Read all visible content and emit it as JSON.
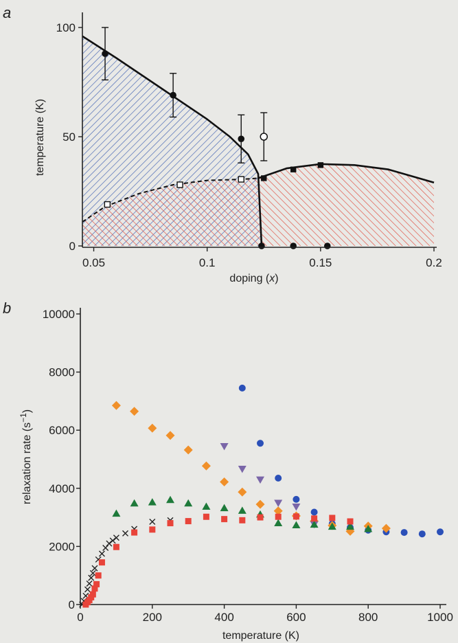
{
  "chart_data": [
    {
      "type": "scatter",
      "panel_label": "a",
      "xlabel_prefix": "doping (",
      "xlabel_var": "x",
      "xlabel_suffix": ")",
      "ylabel": "temperature (K)",
      "xlim": [
        0.045,
        0.2
      ],
      "ylim": [
        0,
        100
      ],
      "xticks": [
        0.05,
        0.1,
        0.15,
        0.2
      ],
      "xtick_labels": [
        "0.05",
        "0.1",
        "0.15",
        "0.2"
      ],
      "yticks": [
        0,
        50,
        100
      ],
      "ytick_labels": [
        "0",
        "50",
        "100"
      ],
      "grid": false,
      "regions": [
        {
          "name": "blue-hatched",
          "color": "#3b5fa8",
          "hatch": "diagonal-up"
        },
        {
          "name": "red-hatched",
          "color": "#d94030",
          "hatch": "diagonal-down"
        }
      ],
      "curves": [
        {
          "name": "upper-solid",
          "style": "solid",
          "x": [
            0.045,
            0.06,
            0.08,
            0.1,
            0.11,
            0.118,
            0.1225,
            0.124
          ],
          "y": [
            96,
            86,
            72,
            58,
            50,
            42,
            33,
            0
          ]
        },
        {
          "name": "dome-solid",
          "style": "solid",
          "x": [
            0.1225,
            0.135,
            0.15,
            0.165,
            0.18,
            0.2
          ],
          "y": [
            31,
            35.5,
            37.5,
            37,
            35,
            29
          ]
        },
        {
          "name": "lower-dashed",
          "style": "dashed",
          "x": [
            0.045,
            0.055,
            0.07,
            0.085,
            0.1,
            0.115,
            0.1225
          ],
          "y": [
            11,
            18,
            24,
            28,
            30,
            30.5,
            31
          ]
        }
      ],
      "series": [
        {
          "marker": "filled-circle",
          "color": "#111111",
          "x": [
            0.055,
            0.085,
            0.115
          ],
          "y": [
            88,
            69,
            49
          ],
          "yerr": [
            12,
            10,
            11
          ]
        },
        {
          "marker": "open-circle",
          "color": "#111111",
          "x": [
            0.125
          ],
          "y": [
            50
          ],
          "yerr": [
            11
          ]
        },
        {
          "marker": "open-square",
          "color": "#111111",
          "x": [
            0.056,
            0.088,
            0.115
          ],
          "y": [
            19,
            28,
            30.5
          ]
        },
        {
          "marker": "filled-square",
          "color": "#111111",
          "x": [
            0.125,
            0.138,
            0.15
          ],
          "y": [
            31,
            35,
            37
          ]
        },
        {
          "marker": "filled-circle",
          "color": "#111111",
          "x": [
            0.124,
            0.138,
            0.153
          ],
          "y": [
            0,
            0,
            0
          ]
        }
      ]
    },
    {
      "type": "scatter",
      "panel_label": "b",
      "xlabel": "temperature (K)",
      "ylabel_prefix": "relaxation rate (s",
      "ylabel_sup": "−1",
      "ylabel_suffix": ")",
      "xlim": [
        0,
        1000
      ],
      "ylim": [
        0,
        10000
      ],
      "xticks": [
        0,
        200,
        400,
        600,
        800,
        1000
      ],
      "xtick_labels": [
        "0",
        "200",
        "400",
        "600",
        "800",
        "1000"
      ],
      "yticks": [
        0,
        2000,
        4000,
        6000,
        8000,
        10000
      ],
      "ytick_labels": [
        "0",
        "2000",
        "4000",
        "6000",
        "8000",
        "10000"
      ],
      "grid": false,
      "series": [
        {
          "marker": "circle",
          "color": "#2b50b8",
          "x": [
            450,
            500,
            550,
            600,
            650,
            700,
            750,
            800,
            850,
            900,
            950,
            1000
          ],
          "y": [
            7450,
            5550,
            4350,
            3620,
            3180,
            2780,
            2650,
            2560,
            2500,
            2480,
            2430,
            2500
          ]
        },
        {
          "marker": "diamond",
          "color": "#f0902a",
          "x": [
            100,
            150,
            200,
            250,
            300,
            350,
            400,
            450,
            500,
            550,
            600,
            650,
            700,
            750,
            800,
            850
          ],
          "y": [
            6850,
            6650,
            6070,
            5820,
            5320,
            4770,
            4220,
            3870,
            3450,
            3220,
            3050,
            2870,
            2720,
            2520,
            2700,
            2620
          ]
        },
        {
          "marker": "triangle-down",
          "color": "#7a66a8",
          "x": [
            400,
            450,
            500,
            550,
            600,
            650
          ],
          "y": [
            5450,
            4670,
            4300,
            3500,
            3370,
            2760
          ]
        },
        {
          "marker": "triangle-up",
          "color": "#1e7a3a",
          "x": [
            100,
            150,
            200,
            250,
            300,
            350,
            400,
            450,
            500,
            550,
            600,
            650,
            700,
            750,
            800
          ],
          "y": [
            3130,
            3480,
            3520,
            3600,
            3480,
            3370,
            3320,
            3230,
            3100,
            2800,
            2730,
            2750,
            2680,
            2680,
            2600
          ]
        },
        {
          "marker": "cross",
          "color": "#222222",
          "x": [
            5,
            10,
            15,
            20,
            25,
            30,
            35,
            40,
            50,
            60,
            70,
            80,
            90,
            100,
            125,
            150,
            200,
            250
          ],
          "y": [
            0,
            120,
            300,
            520,
            720,
            920,
            1080,
            1250,
            1550,
            1750,
            1950,
            2100,
            2200,
            2300,
            2450,
            2600,
            2850,
            2900
          ]
        },
        {
          "marker": "square",
          "color": "#e8443a",
          "x": [
            15,
            20,
            25,
            30,
            35,
            40,
            45,
            50,
            60,
            100,
            150,
            200,
            250,
            300,
            350,
            400,
            450,
            500,
            550,
            600,
            650,
            700,
            750
          ],
          "y": [
            0,
            80,
            150,
            250,
            350,
            550,
            700,
            1000,
            1450,
            1980,
            2480,
            2580,
            2800,
            2870,
            3020,
            2940,
            2900,
            3000,
            3020,
            3030,
            2960,
            2980,
            2860
          ]
        }
      ]
    }
  ]
}
